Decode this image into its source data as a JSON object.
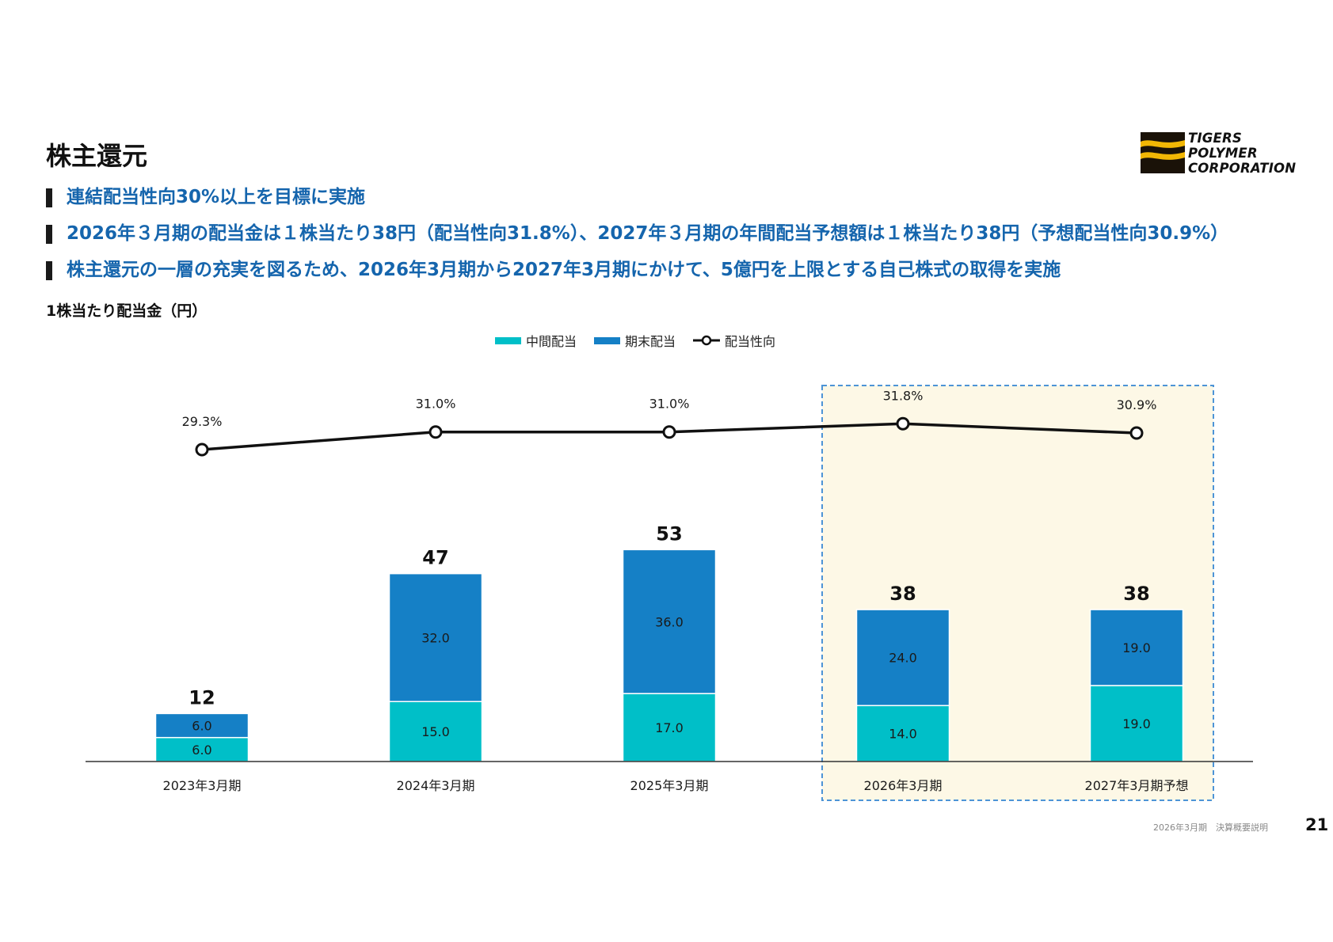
{
  "title": "株主還元",
  "logo": {
    "lines": [
      "TIGERS",
      "POLYMER",
      "CORPORATION"
    ]
  },
  "bullets": [
    "連結配当性向30%以上を目標に実施",
    "2026年３月期の配当金は１株当たり38円（配当性向31.8%）、2027年３月期の年間配当予想額は１株当たり38円（予想配当性向30.9%）",
    "株主還元の一層の充実を図るため、2026年3月期から2027年3月期にかけて、5億円を上限とする自己株式の取得を実施"
  ],
  "chart_data": {
    "type": "bar",
    "stacked": true,
    "ylabel": "1株当たり配当金（円）",
    "categories": [
      "2023年3月期",
      "2024年3月期",
      "2025年3月期",
      "2026年3月期",
      "2027年3月期予想"
    ],
    "series": [
      {
        "name": "中間配当",
        "values": [
          6.0,
          15.0,
          17.0,
          14.0,
          19.0
        ],
        "labels": [
          "6.0",
          "15.0",
          "17.0",
          "14.0",
          "19.0"
        ],
        "color": "#00bfc8"
      },
      {
        "name": "期末配当",
        "values": [
          6.0,
          32.0,
          36.0,
          24.0,
          19.0
        ],
        "labels": [
          "6.0",
          "32.0",
          "36.0",
          "24.0",
          "19.0"
        ],
        "color": "#1580c6"
      }
    ],
    "totals": [
      "12",
      "47",
      "53",
      "38",
      "38"
    ],
    "line_series": {
      "name": "配当性向",
      "values": [
        29.3,
        31.0,
        31.0,
        31.8,
        30.9
      ],
      "labels": [
        "29.3%",
        "31.0%",
        "31.0%",
        "31.8%",
        "30.9%"
      ],
      "color": "#111111"
    },
    "highlight": {
      "categories": [
        "2026年3月期",
        "2027年3月期予想"
      ],
      "fill": "#fdf8e6",
      "border": "#4d94d6"
    },
    "legend_position": "top-center",
    "grid": false
  },
  "footer": {
    "doc": "2026年3月期　決算概要説明",
    "page": "21"
  }
}
